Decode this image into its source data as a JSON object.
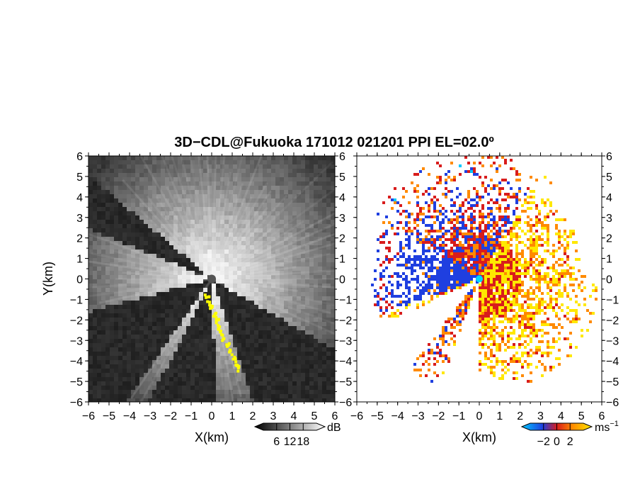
{
  "title": "3D−CDL@Fukuoka 171012 021201 PPI EL=02.0º",
  "chart_data": [
    {
      "type": "heatmap",
      "panel": "left",
      "quantity": "backscatter intensity (SNR)",
      "xlabel": "X(km)",
      "ylabel": "Y(km)",
      "xlim": [
        -6,
        6
      ],
      "ylim": [
        -6,
        6
      ],
      "xticks": [
        "−6",
        "−5",
        "−4",
        "−3",
        "−2",
        "−1",
        "0",
        "1",
        "2",
        "3",
        "4",
        "5",
        "6"
      ],
      "yticks": [
        "6",
        "5",
        "4",
        "3",
        "2",
        "1",
        "0",
        "−1",
        "−2",
        "−3",
        "−4",
        "−5",
        "−6"
      ],
      "colorbar": {
        "ticks": [
          "6",
          "12",
          "18"
        ],
        "unit": "dB",
        "values": [
          6,
          12,
          18
        ],
        "range": [
          0,
          24
        ]
      },
      "colors": {
        "background": "#2b2b2b",
        "bright": "#f0f0f0",
        "highlight": "#ffff00"
      },
      "blocked_sectors_deg": [
        [
          140,
          158
        ],
        [
          195,
          235
        ],
        [
          243,
          272
        ],
        [
          289,
          330
        ]
      ],
      "radar_center": [
        0,
        0
      ]
    },
    {
      "type": "heatmap",
      "panel": "right",
      "quantity": "radial velocity",
      "xlabel": "X(km)",
      "ylabel": "",
      "xlim": [
        -6,
        6
      ],
      "ylim": [
        -6,
        6
      ],
      "xticks": [
        "−6",
        "−5",
        "−4",
        "−3",
        "−2",
        "−1",
        "0",
        "1",
        "2",
        "3",
        "4",
        "5",
        "6"
      ],
      "yticks": [
        "6",
        "5",
        "4",
        "3",
        "2",
        "1",
        "0",
        "−1",
        "−2",
        "−3",
        "−4",
        "−5",
        "−6"
      ],
      "colorbar": {
        "ticks": [
          "−2",
          "0",
          "2"
        ],
        "unit": "ms",
        "unit_exponent": "−1",
        "values": [
          -2,
          0,
          2
        ],
        "range": [
          -4,
          4
        ]
      },
      "colors": {
        "neg_strong": "#00c8ff",
        "neg": "#1f3fe0",
        "zero": "#d81c1c",
        "pos": "#ff8a00",
        "pos_strong": "#ffe800",
        "marker": "#00d8ff"
      },
      "radar_center": [
        0,
        0
      ]
    }
  ]
}
